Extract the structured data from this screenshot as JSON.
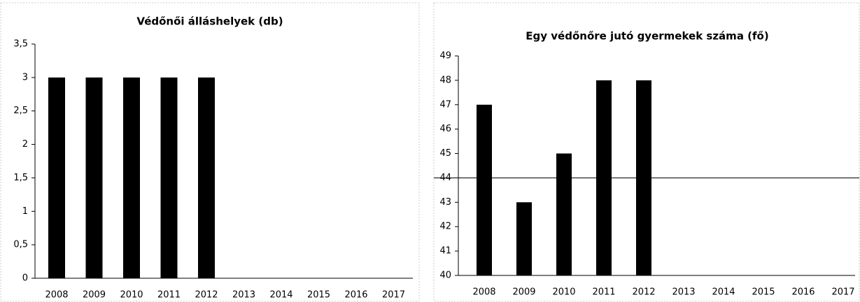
{
  "chart_data": [
    {
      "type": "bar",
      "title": "Védőnői álláshelyek (db)",
      "categories": [
        "2008",
        "2009",
        "2010",
        "2011",
        "2012",
        "2013",
        "2014",
        "2015",
        "2016",
        "2017"
      ],
      "values": [
        3,
        3,
        3,
        3,
        3,
        null,
        null,
        null,
        null,
        null
      ],
      "color": "#000000",
      "ylim": [
        0,
        3.5
      ],
      "yticks": [
        0,
        {
          "value": 0.5,
          "label": "0,5"
        },
        1,
        {
          "value": 1.5,
          "label": "1,5"
        },
        2,
        {
          "value": 2.5,
          "label": "2,5"
        },
        3,
        {
          "value": 3.5,
          "label": "3,5"
        }
      ]
    },
    {
      "type": "bar",
      "title": "Egy védőnőre jutó gyermekek száma (fő)",
      "categories": [
        "2008",
        "2009",
        "2010",
        "2011",
        "2012",
        "2013",
        "2014",
        "2015",
        "2016",
        "2017"
      ],
      "values": [
        47,
        43,
        45,
        48,
        48,
        null,
        null,
        null,
        null,
        null
      ],
      "color": "#000000",
      "ylim": [
        40,
        49
      ],
      "yticks": [
        40,
        41,
        42,
        43,
        44,
        45,
        46,
        47,
        48,
        49
      ],
      "hline": 44
    }
  ]
}
